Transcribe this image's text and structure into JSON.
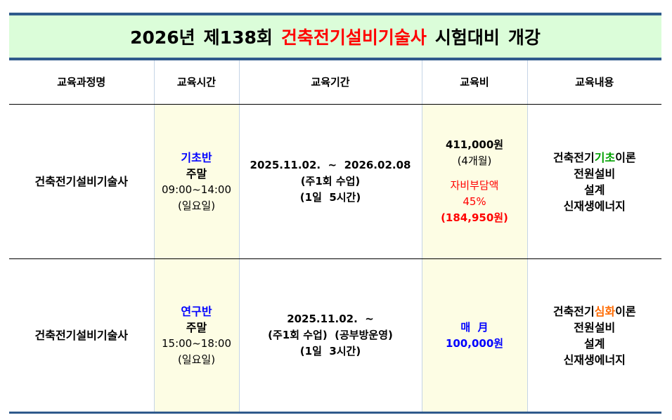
{
  "title": {
    "part1": "2026년",
    "part2": "제138회",
    "highlight": "건축전기설비기술사",
    "part3": "시험대비",
    "part4": "개강"
  },
  "headers": [
    "교육과정명",
    "교육시간",
    "교육기간",
    "교육비",
    "교육내용"
  ],
  "rows": [
    {
      "course": "건축전기설비기술사",
      "time": {
        "class": "기초반",
        "day": "주말",
        "hours": "09:00~14:00",
        "weekday": "(일요일)"
      },
      "period": [
        "2025.11.02.  ~  2026.02.08",
        "(주1회 수업)",
        "(1일  5시간)"
      ],
      "fee": {
        "amount": "411,000원",
        "duration": "(4개월)",
        "self_label": "자비부담액",
        "percent": "45%",
        "self_amount": "(184,950원)"
      },
      "content": {
        "prefix": "건축전기",
        "keyword": "기초",
        "suffix": "이론",
        "lines": [
          "전원설비",
          "설계",
          "신재생에너지"
        ]
      }
    },
    {
      "course": "건축전기설비기술사",
      "time": {
        "class": "연구반",
        "day": "주말",
        "hours": "15:00~18:00",
        "weekday": "(일요일)"
      },
      "period": [
        "2025.11.02.  ~",
        "(주1회 수업)  (공부방운영)",
        "(1일  3시간)"
      ],
      "fee": {
        "label": "매  月",
        "amount": "100,000원"
      },
      "content": {
        "prefix": "건축전기",
        "keyword": "심화",
        "suffix": "이론",
        "lines": [
          "전원설비",
          "설계",
          "신재생에너지"
        ]
      }
    }
  ],
  "colors": {
    "title_bg": "#dbfdd9",
    "border": "#2f5a8c",
    "highlight_col": "#fdfde4",
    "red": "#ff0000",
    "blue": "#0000ff",
    "green": "#00a000",
    "orange": "#ff6a00"
  }
}
